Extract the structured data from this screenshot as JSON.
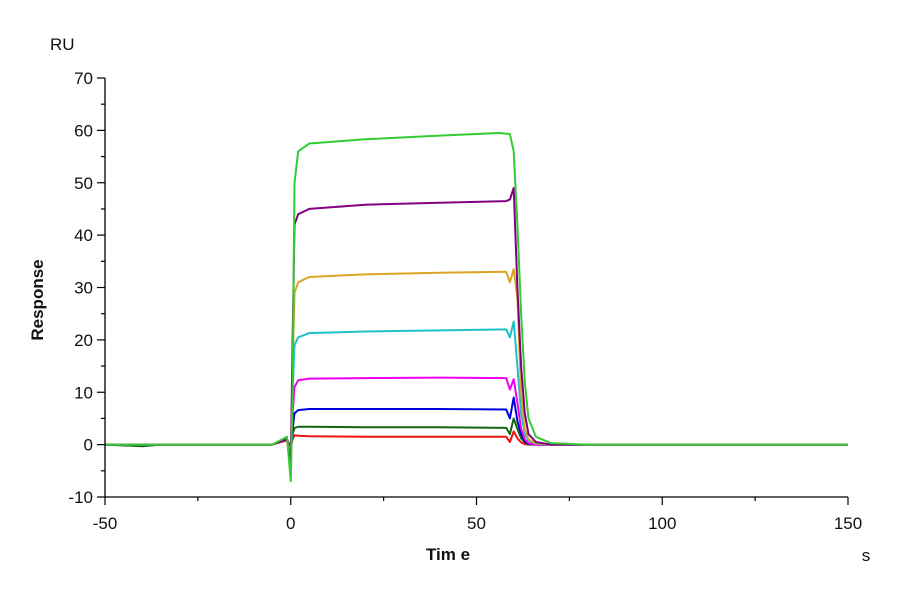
{
  "chart_data": {
    "type": "line",
    "title": "",
    "xlabel": "Tim e",
    "ylabel": "Response",
    "x_unit": "s",
    "y_unit": "RU",
    "xlim": [
      -50,
      150
    ],
    "ylim": [
      -10,
      70
    ],
    "x_ticks": [
      -50,
      0,
      50,
      100,
      150
    ],
    "y_ticks": [
      -10,
      0,
      10,
      20,
      30,
      40,
      50,
      60,
      70
    ],
    "grid": false,
    "legend": null,
    "series": [
      {
        "name": "curve-1",
        "color": "#33CC33",
        "points": [
          [
            -50,
            0
          ],
          [
            -5,
            0
          ],
          [
            -1,
            1.5
          ],
          [
            0,
            -7
          ],
          [
            0.5,
            10
          ],
          [
            1,
            50
          ],
          [
            2,
            56
          ],
          [
            5,
            57.5
          ],
          [
            20,
            58.3
          ],
          [
            40,
            59
          ],
          [
            56,
            59.5
          ],
          [
            59,
            59.3
          ],
          [
            60,
            56
          ],
          [
            61,
            42
          ],
          [
            62,
            25
          ],
          [
            63,
            12
          ],
          [
            64,
            5
          ],
          [
            66,
            1.5
          ],
          [
            70,
            0.3
          ],
          [
            80,
            0
          ],
          [
            150,
            0
          ]
        ]
      },
      {
        "name": "curve-2",
        "color": "#800080",
        "points": [
          [
            -50,
            0
          ],
          [
            -5,
            0
          ],
          [
            -1,
            1
          ],
          [
            0,
            -4
          ],
          [
            0.5,
            20
          ],
          [
            1,
            42
          ],
          [
            2,
            44
          ],
          [
            5,
            45
          ],
          [
            20,
            45.8
          ],
          [
            40,
            46.2
          ],
          [
            58,
            46.5
          ],
          [
            59,
            46.8
          ],
          [
            60,
            49
          ],
          [
            61,
            30
          ],
          [
            62,
            15
          ],
          [
            63,
            6
          ],
          [
            64,
            2
          ],
          [
            66,
            0.5
          ],
          [
            70,
            0
          ],
          [
            150,
            0
          ]
        ]
      },
      {
        "name": "curve-3",
        "color": "#DAA520",
        "points": [
          [
            -50,
            0
          ],
          [
            -5,
            0
          ],
          [
            -1,
            1
          ],
          [
            0,
            -3
          ],
          [
            0.5,
            15
          ],
          [
            1,
            29
          ],
          [
            2,
            31
          ],
          [
            5,
            32
          ],
          [
            20,
            32.5
          ],
          [
            40,
            32.8
          ],
          [
            58,
            33
          ],
          [
            59,
            31
          ],
          [
            60,
            33.5
          ],
          [
            61,
            28
          ],
          [
            62,
            10
          ],
          [
            63,
            3
          ],
          [
            64,
            1
          ],
          [
            66,
            0.3
          ],
          [
            70,
            0
          ],
          [
            150,
            0
          ]
        ]
      },
      {
        "name": "curve-4",
        "color": "#20C0C8",
        "points": [
          [
            -50,
            0
          ],
          [
            -5,
            0
          ],
          [
            -1,
            1
          ],
          [
            0,
            -2
          ],
          [
            0.5,
            10
          ],
          [
            1,
            19
          ],
          [
            2,
            20.5
          ],
          [
            5,
            21.3
          ],
          [
            20,
            21.6
          ],
          [
            40,
            21.8
          ],
          [
            58,
            22
          ],
          [
            59,
            20.5
          ],
          [
            60,
            23.5
          ],
          [
            61,
            15
          ],
          [
            62,
            6
          ],
          [
            63,
            2
          ],
          [
            64,
            0.8
          ],
          [
            66,
            0.2
          ],
          [
            70,
            0
          ],
          [
            150,
            0
          ]
        ]
      },
      {
        "name": "curve-5",
        "color": "#EE00EE",
        "points": [
          [
            -50,
            0
          ],
          [
            -5,
            0
          ],
          [
            -1,
            1
          ],
          [
            0,
            -1.5
          ],
          [
            0.5,
            6
          ],
          [
            1,
            11
          ],
          [
            2,
            12.3
          ],
          [
            5,
            12.6
          ],
          [
            20,
            12.7
          ],
          [
            40,
            12.8
          ],
          [
            58,
            12.7
          ],
          [
            59,
            10.5
          ],
          [
            60,
            12.5
          ],
          [
            61,
            8
          ],
          [
            62,
            3
          ],
          [
            63,
            1
          ],
          [
            64,
            0.3
          ],
          [
            66,
            0
          ],
          [
            150,
            0
          ]
        ]
      },
      {
        "name": "curve-6",
        "color": "#0000DD",
        "points": [
          [
            -50,
            0
          ],
          [
            -5,
            0
          ],
          [
            -1,
            1
          ],
          [
            0,
            -1
          ],
          [
            0.5,
            3
          ],
          [
            1,
            6
          ],
          [
            2,
            6.6
          ],
          [
            5,
            6.8
          ],
          [
            20,
            6.8
          ],
          [
            40,
            6.8
          ],
          [
            58,
            6.7
          ],
          [
            59,
            5
          ],
          [
            60,
            9
          ],
          [
            61,
            4.5
          ],
          [
            62,
            2
          ],
          [
            63,
            0.6
          ],
          [
            64,
            0.2
          ],
          [
            66,
            0
          ],
          [
            150,
            0
          ]
        ]
      },
      {
        "name": "curve-7",
        "color": "#116611",
        "points": [
          [
            -50,
            0
          ],
          [
            -40,
            -0.3
          ],
          [
            -35,
            0
          ],
          [
            -5,
            0
          ],
          [
            -1,
            1
          ],
          [
            0,
            -0.5
          ],
          [
            0.5,
            2
          ],
          [
            1,
            3.2
          ],
          [
            2,
            3.4
          ],
          [
            5,
            3.4
          ],
          [
            20,
            3.3
          ],
          [
            40,
            3.3
          ],
          [
            58,
            3.2
          ],
          [
            59,
            2
          ],
          [
            60,
            5
          ],
          [
            61,
            3
          ],
          [
            62,
            1.2
          ],
          [
            63,
            0.4
          ],
          [
            64,
            0.1
          ],
          [
            66,
            0
          ],
          [
            150,
            0
          ]
        ]
      },
      {
        "name": "curve-8",
        "color": "#EE1111",
        "points": [
          [
            -50,
            0
          ],
          [
            -5,
            0
          ],
          [
            -1,
            0.8
          ],
          [
            0,
            -0.5
          ],
          [
            0.5,
            1
          ],
          [
            1,
            1.8
          ],
          [
            2,
            1.7
          ],
          [
            5,
            1.6
          ],
          [
            20,
            1.5
          ],
          [
            40,
            1.5
          ],
          [
            58,
            1.5
          ],
          [
            59,
            0.5
          ],
          [
            60,
            2.5
          ],
          [
            61,
            1.2
          ],
          [
            62,
            0.4
          ],
          [
            63,
            0.1
          ],
          [
            64,
            0
          ],
          [
            150,
            0
          ]
        ]
      }
    ]
  }
}
